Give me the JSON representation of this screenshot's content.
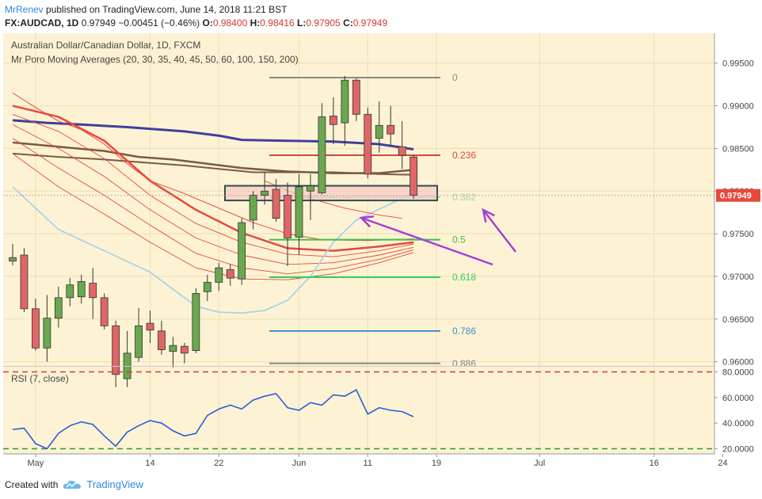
{
  "header": {
    "author": "MrRenev",
    "published_text": "published on TradingView.com, June 14, 2018 11:21 BST",
    "symbol": "FX:AUDCAD, 1D",
    "last": "0.97949",
    "change": "−0.00451 (−0.46%)",
    "o_label": "O:",
    "o": "0.98400",
    "h_label": "H:",
    "h": "0.98416",
    "l_label": "L:",
    "l": "0.97905",
    "c_label": "C:",
    "c": "0.97949"
  },
  "footer": {
    "created_with": "Created with",
    "brand": "TradingView"
  },
  "colors": {
    "panel_bg": "#fdf3d4",
    "up": "#6aa84f",
    "down": "#e06666",
    "ma200": "#3f3f9f",
    "ma_brown": "#7a5a43",
    "ma_red": "#e8483c",
    "ma_light": "#a8d4e6",
    "fib0": "#888888",
    "fib236": "#d04a3c",
    "fib382": "#a6d7a3",
    "fib5": "#3fbf45",
    "fib618": "#33cc66",
    "fib786": "#3d8ec9",
    "fib886": "#888888",
    "rsi": "#2a5fd6",
    "rsi_hi": "#d63a3a",
    "rsi_lo": "#2f9a2f",
    "arrow": "#a63fd6",
    "price_tag": "#e8483c"
  },
  "chart_data": [
    {
      "type": "candlestick",
      "title": "Australian Dollar/Canadian Dollar, 1D, FXCM",
      "subtitle": "Mr Poro Moving Averages (20, 30, 35, 40, 45, 50, 60, 100, 150, 200)",
      "ylim": [
        0.9595,
        0.9985
      ],
      "y_ticks": [
        "0.99500",
        "0.99000",
        "0.98500",
        "0.98000",
        "0.97500",
        "0.97000",
        "0.96500",
        "0.96000"
      ],
      "y_tick_values": [
        0.995,
        0.99,
        0.985,
        0.98,
        0.975,
        0.97,
        0.965,
        0.96
      ],
      "x_ticks": [
        "May",
        "14",
        "22",
        "Jun",
        "11",
        "19",
        "Jul",
        "16",
        "24"
      ],
      "x_tick_index": [
        2,
        12,
        18,
        25,
        31,
        37,
        46,
        56,
        62
      ],
      "last_price": "0.97949",
      "candles": [
        {
          "o": 0.9718,
          "h": 0.9738,
          "l": 0.9713,
          "c": 0.9722
        },
        {
          "o": 0.9725,
          "h": 0.9733,
          "l": 0.9658,
          "c": 0.9662
        },
        {
          "o": 0.9662,
          "h": 0.9674,
          "l": 0.9613,
          "c": 0.9616
        },
        {
          "o": 0.9616,
          "h": 0.9678,
          "l": 0.96,
          "c": 0.9651
        },
        {
          "o": 0.9651,
          "h": 0.9688,
          "l": 0.964,
          "c": 0.9675
        },
        {
          "o": 0.9675,
          "h": 0.9698,
          "l": 0.9665,
          "c": 0.969
        },
        {
          "o": 0.9676,
          "h": 0.9702,
          "l": 0.9668,
          "c": 0.9694
        },
        {
          "o": 0.9692,
          "h": 0.971,
          "l": 0.965,
          "c": 0.9675
        },
        {
          "o": 0.9675,
          "h": 0.968,
          "l": 0.9638,
          "c": 0.9642
        },
        {
          "o": 0.9642,
          "h": 0.9648,
          "l": 0.957,
          "c": 0.9585
        },
        {
          "o": 0.958,
          "h": 0.9636,
          "l": 0.957,
          "c": 0.961
        },
        {
          "o": 0.9605,
          "h": 0.9663,
          "l": 0.96,
          "c": 0.9642
        },
        {
          "o": 0.9645,
          "h": 0.966,
          "l": 0.9622,
          "c": 0.9637
        },
        {
          "o": 0.9636,
          "h": 0.9648,
          "l": 0.9608,
          "c": 0.9614
        },
        {
          "o": 0.9612,
          "h": 0.9629,
          "l": 0.9593,
          "c": 0.9619
        },
        {
          "o": 0.9618,
          "h": 0.9622,
          "l": 0.9598,
          "c": 0.961
        },
        {
          "o": 0.9613,
          "h": 0.9686,
          "l": 0.961,
          "c": 0.968
        },
        {
          "o": 0.9682,
          "h": 0.9702,
          "l": 0.9671,
          "c": 0.9693
        },
        {
          "o": 0.9693,
          "h": 0.9716,
          "l": 0.9683,
          "c": 0.971
        },
        {
          "o": 0.9708,
          "h": 0.9714,
          "l": 0.9689,
          "c": 0.9698
        },
        {
          "o": 0.9697,
          "h": 0.9768,
          "l": 0.969,
          "c": 0.9763
        },
        {
          "o": 0.9766,
          "h": 0.98,
          "l": 0.9755,
          "c": 0.9795
        },
        {
          "o": 0.9795,
          "h": 0.9822,
          "l": 0.9784,
          "c": 0.98
        },
        {
          "o": 0.9802,
          "h": 0.9814,
          "l": 0.9764,
          "c": 0.9768
        },
        {
          "o": 0.9795,
          "h": 0.981,
          "l": 0.9712,
          "c": 0.9745
        },
        {
          "o": 0.9746,
          "h": 0.982,
          "l": 0.9725,
          "c": 0.9805
        },
        {
          "o": 0.98,
          "h": 0.982,
          "l": 0.9766,
          "c": 0.9806
        },
        {
          "o": 0.9798,
          "h": 0.9903,
          "l": 0.9796,
          "c": 0.9887
        },
        {
          "o": 0.9888,
          "h": 0.991,
          "l": 0.9855,
          "c": 0.9878
        },
        {
          "o": 0.988,
          "h": 0.9935,
          "l": 0.9853,
          "c": 0.993
        },
        {
          "o": 0.993,
          "h": 0.9932,
          "l": 0.9882,
          "c": 0.989
        },
        {
          "o": 0.989,
          "h": 0.9898,
          "l": 0.9815,
          "c": 0.982
        },
        {
          "o": 0.9862,
          "h": 0.9905,
          "l": 0.9845,
          "c": 0.9877
        },
        {
          "o": 0.9877,
          "h": 0.99,
          "l": 0.9852,
          "c": 0.9867
        },
        {
          "o": 0.9852,
          "h": 0.9882,
          "l": 0.9826,
          "c": 0.9842
        },
        {
          "o": 0.984,
          "h": 0.9842,
          "l": 0.9791,
          "c": 0.9795
        }
      ],
      "ma_lines": [
        {
          "name": "MA200",
          "points": [
            [
              0,
              0.9883
            ],
            [
              3,
              0.988
            ],
            [
              6,
              0.9878
            ],
            [
              10,
              0.9875
            ],
            [
              15,
              0.987
            ],
            [
              18,
              0.9865
            ],
            [
              20,
              0.986
            ],
            [
              24,
              0.9859
            ],
            [
              28,
              0.9858
            ],
            [
              32,
              0.9855
            ],
            [
              35,
              0.9849
            ]
          ]
        },
        {
          "name": "MA150",
          "points": [
            [
              0,
              0.9857
            ],
            [
              4,
              0.9852
            ],
            [
              8,
              0.9847
            ],
            [
              11,
              0.984
            ],
            [
              14,
              0.9837
            ],
            [
              17,
              0.9832
            ],
            [
              20,
              0.9827
            ],
            [
              24,
              0.9823
            ],
            [
              28,
              0.9821
            ],
            [
              32,
              0.9821
            ],
            [
              35,
              0.9825
            ]
          ]
        },
        {
          "name": "MA100",
          "points": [
            [
              0,
              0.9844
            ],
            [
              4,
              0.984
            ],
            [
              8,
              0.9837
            ],
            [
              12,
              0.9833
            ],
            [
              15,
              0.983
            ],
            [
              18,
              0.9826
            ],
            [
              21,
              0.9822
            ],
            [
              24,
              0.9822
            ],
            [
              28,
              0.9822
            ],
            [
              32,
              0.982
            ],
            [
              35,
              0.9819
            ]
          ]
        },
        {
          "name": "MA60",
          "points": [
            [
              0,
              0.9915
            ],
            [
              2,
              0.9898
            ],
            [
              4,
              0.9882
            ],
            [
              6,
              0.9872
            ],
            [
              8,
              0.9855
            ],
            [
              10,
              0.9832
            ],
            [
              12,
              0.9812
            ],
            [
              15,
              0.9797
            ],
            [
              18,
              0.978
            ],
            [
              21,
              0.9763
            ],
            [
              24,
              0.975
            ],
            [
              27,
              0.9743
            ],
            [
              31,
              0.9742
            ],
            [
              35,
              0.9744
            ]
          ]
        },
        {
          "name": "MA50",
          "points": [
            [
              0,
              0.99
            ],
            [
              4,
              0.9887
            ],
            [
              8,
              0.9859
            ],
            [
              12,
              0.9812
            ],
            [
              16,
              0.9778
            ],
            [
              20,
              0.9751
            ],
            [
              24,
              0.9733
            ],
            [
              28,
              0.973
            ],
            [
              32,
              0.9735
            ],
            [
              35,
              0.974
            ]
          ]
        },
        {
          "name": "MA45",
          "points": [
            [
              0,
              0.989
            ],
            [
              4,
              0.987
            ],
            [
              8,
              0.9838
            ],
            [
              12,
              0.9795
            ],
            [
              16,
              0.9762
            ],
            [
              20,
              0.974
            ],
            [
              24,
              0.9726
            ],
            [
              28,
              0.9723
            ],
            [
              32,
              0.973
            ],
            [
              35,
              0.9738
            ]
          ]
        },
        {
          "name": "MA40",
          "points": [
            [
              0,
              0.9878
            ],
            [
              4,
              0.985
            ],
            [
              8,
              0.9817
            ],
            [
              12,
              0.9778
            ],
            [
              16,
              0.9745
            ],
            [
              20,
              0.9725
            ],
            [
              24,
              0.9714
            ],
            [
              28,
              0.9716
            ],
            [
              32,
              0.9725
            ],
            [
              35,
              0.9734
            ]
          ]
        },
        {
          "name": "MA35",
          "points": [
            [
              0,
              0.9862
            ],
            [
              4,
              0.9827
            ],
            [
              8,
              0.9795
            ],
            [
              12,
              0.976
            ],
            [
              16,
              0.9727
            ],
            [
              20,
              0.971
            ],
            [
              24,
              0.9703
            ],
            [
              28,
              0.9709
            ],
            [
              32,
              0.972
            ],
            [
              35,
              0.9731
            ]
          ]
        },
        {
          "name": "MA30",
          "points": [
            [
              0,
              0.9844
            ],
            [
              4,
              0.9805
            ],
            [
              8,
              0.9773
            ],
            [
              12,
              0.974
            ],
            [
              16,
              0.971
            ],
            [
              20,
              0.9697
            ],
            [
              24,
              0.9696
            ],
            [
              28,
              0.9703
            ],
            [
              32,
              0.9716
            ],
            [
              35,
              0.9728
            ]
          ]
        },
        {
          "name": "MA20",
          "points": [
            [
              0,
              0.9805
            ],
            [
              4,
              0.9755
            ],
            [
              8,
              0.973
            ],
            [
              12,
              0.9705
            ],
            [
              16,
              0.9665
            ],
            [
              18,
              0.9658
            ],
            [
              20,
              0.9657
            ],
            [
              22,
              0.966
            ],
            [
              24,
              0.9672
            ],
            [
              26,
              0.97
            ],
            [
              28,
              0.974
            ],
            [
              30,
              0.9766
            ],
            [
              33,
              0.9785
            ],
            [
              35,
              0.9798
            ]
          ]
        },
        {
          "name": "MA-upper",
          "points": [
            [
              22,
              0.9812
            ],
            [
              25,
              0.9795
            ],
            [
              29,
              0.978
            ],
            [
              32,
              0.9772
            ],
            [
              34,
              0.9768
            ]
          ]
        }
      ],
      "fib_levels": [
        {
          "label": "0",
          "price": 0.9933
        },
        {
          "label": "0.236",
          "price": 0.9842
        },
        {
          "label": "0.382",
          "price": 0.9793
        },
        {
          "label": "0.5",
          "price": 0.9743
        },
        {
          "label": "0.618",
          "price": 0.9699
        },
        {
          "label": "0.786",
          "price": 0.9636
        },
        {
          "label": "0.886",
          "price": 0.9598
        }
      ],
      "zone": {
        "from_index": 24,
        "to_index": 38,
        "low": 0.9789,
        "high": 0.98062
      }
    },
    {
      "type": "line",
      "title": "RSI (7, close)",
      "ylim": [
        16,
        84
      ],
      "y_ticks": [
        "80.0000",
        "60.0000",
        "40.0000",
        "20.0000"
      ],
      "y_tick_values": [
        80,
        60,
        40,
        20
      ],
      "overbought": 80,
      "oversold": 20,
      "x": [
        0,
        1,
        2,
        3,
        4,
        5,
        6,
        7,
        8,
        9,
        10,
        11,
        12,
        13,
        14,
        15,
        16,
        17,
        18,
        19,
        20,
        21,
        22,
        23,
        24,
        25,
        26,
        27,
        28,
        29,
        30,
        31,
        32,
        33,
        34,
        35
      ],
      "values": [
        35,
        36,
        24,
        20,
        32,
        38,
        41,
        39,
        30,
        22,
        33,
        38,
        42,
        40,
        34,
        30,
        32,
        46,
        51,
        54,
        51,
        58,
        61,
        63,
        52,
        50,
        56,
        54,
        62,
        61,
        66,
        47,
        52,
        50,
        49,
        45
      ]
    }
  ]
}
